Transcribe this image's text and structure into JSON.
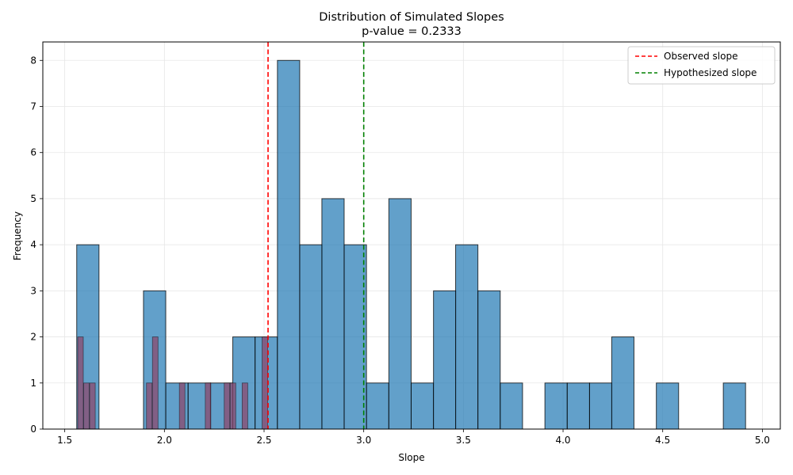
{
  "chart_data": {
    "type": "bar",
    "title": "Distribution of Simulated Slopes",
    "subtitle": "p-value = 0.2333",
    "xlabel": "Slope",
    "ylabel": "Frequency",
    "xlim": [
      1.39,
      5.09
    ],
    "ylim": [
      0,
      8.4
    ],
    "grid": true,
    "x_ticks": [
      "1.5",
      "2.0",
      "2.5",
      "3.0",
      "3.5",
      "4.0",
      "4.5",
      "5.0"
    ],
    "y_ticks": [
      "0",
      "1",
      "2",
      "3",
      "4",
      "5",
      "6",
      "7",
      "8"
    ],
    "legend_position": "top-right",
    "colors": {
      "histogram_fill": "#1f77b4",
      "overlay_fill": "#8c4a6e",
      "bar_edge": "#000000",
      "observed_line": "#ff0000",
      "hypothesized_line": "#008000",
      "grid": "#e6e6e6"
    },
    "bin_width": 0.1118,
    "bins": [
      {
        "start": 1.56,
        "count": 4
      },
      {
        "start": 1.672,
        "count": 0
      },
      {
        "start": 1.784,
        "count": 0
      },
      {
        "start": 1.895,
        "count": 3
      },
      {
        "start": 2.007,
        "count": 1
      },
      {
        "start": 2.119,
        "count": 1
      },
      {
        "start": 2.231,
        "count": 1
      },
      {
        "start": 2.343,
        "count": 2
      },
      {
        "start": 2.455,
        "count": 2
      },
      {
        "start": 2.567,
        "count": 8
      },
      {
        "start": 2.679,
        "count": 4
      },
      {
        "start": 2.79,
        "count": 5
      },
      {
        "start": 2.902,
        "count": 4
      },
      {
        "start": 3.014,
        "count": 1
      },
      {
        "start": 3.126,
        "count": 5
      },
      {
        "start": 3.238,
        "count": 1
      },
      {
        "start": 3.35,
        "count": 3
      },
      {
        "start": 3.461,
        "count": 4
      },
      {
        "start": 3.573,
        "count": 3
      },
      {
        "start": 3.685,
        "count": 1
      },
      {
        "start": 3.797,
        "count": 0
      },
      {
        "start": 3.909,
        "count": 1
      },
      {
        "start": 4.021,
        "count": 1
      },
      {
        "start": 4.133,
        "count": 1
      },
      {
        "start": 4.244,
        "count": 2
      },
      {
        "start": 4.356,
        "count": 0
      },
      {
        "start": 4.468,
        "count": 1
      },
      {
        "start": 4.58,
        "count": 0
      },
      {
        "start": 4.692,
        "count": 0
      },
      {
        "start": 4.804,
        "count": 1
      }
    ],
    "overlay_bar_width": 0.028,
    "overlay_bars": [
      {
        "start": 1.565,
        "count": 2
      },
      {
        "start": 1.595,
        "count": 1
      },
      {
        "start": 1.625,
        "count": 1
      },
      {
        "start": 1.91,
        "count": 1
      },
      {
        "start": 1.94,
        "count": 2
      },
      {
        "start": 2.075,
        "count": 1
      },
      {
        "start": 2.205,
        "count": 1
      },
      {
        "start": 2.3,
        "count": 1
      },
      {
        "start": 2.33,
        "count": 1
      },
      {
        "start": 2.39,
        "count": 1
      },
      {
        "start": 2.49,
        "count": 2
      }
    ],
    "series": [
      {
        "name": "Observed slope",
        "type": "vline",
        "x": 2.52,
        "color": "#ff0000",
        "dash": "dashed"
      },
      {
        "name": "Hypothesized slope",
        "type": "vline",
        "x": 3.0,
        "color": "#008000",
        "dash": "dashed"
      }
    ]
  }
}
